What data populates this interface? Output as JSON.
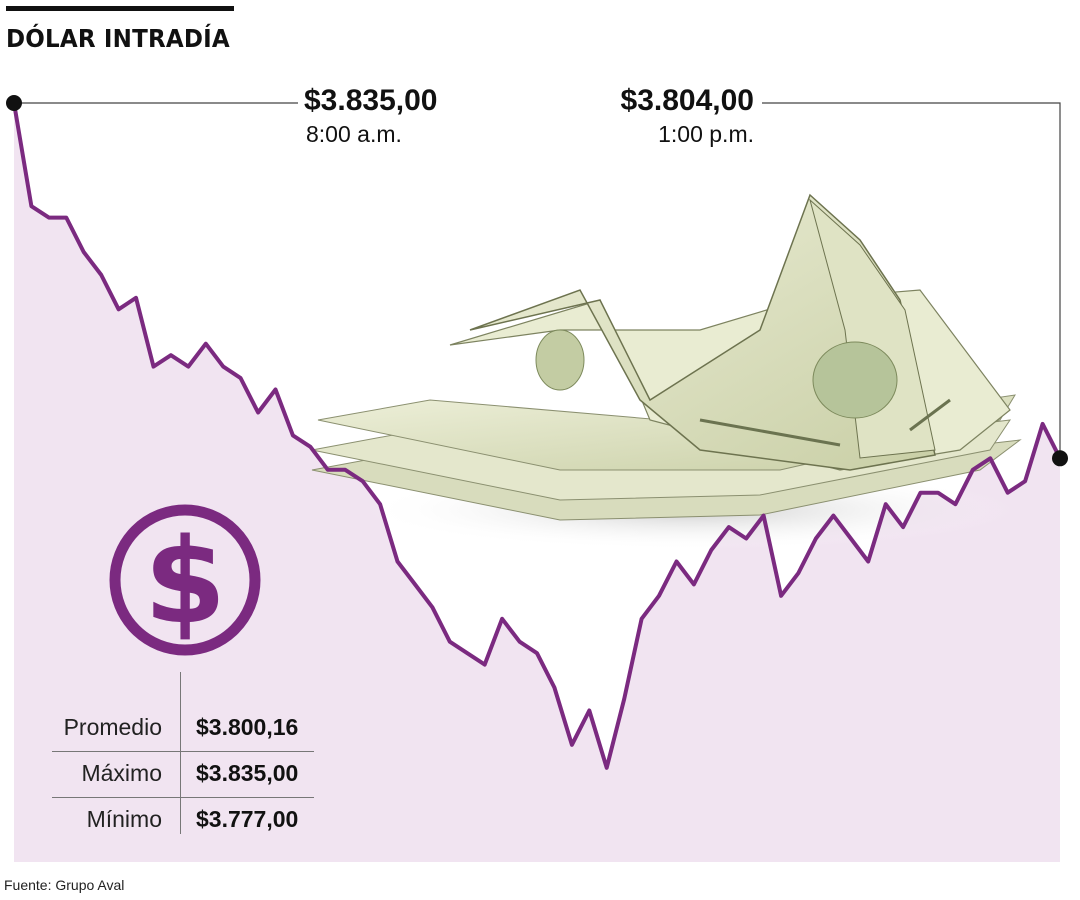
{
  "title": "DÓLAR INTRADÍA",
  "annotations": {
    "open": {
      "value": "$3.835,00",
      "time": "8:00 a.m."
    },
    "close": {
      "value": "$3.804,00",
      "time": "1:00 p.m."
    }
  },
  "stats": [
    {
      "label": "Promedio",
      "value": "$3.800,16"
    },
    {
      "label": "Máximo",
      "value": "$3.835,00"
    },
    {
      "label": "Mínimo",
      "value": "$3.777,00"
    }
  ],
  "source": "Fuente: Grupo Aval",
  "icons": {
    "currency": "dollar-circle-icon",
    "illustration": "dollar-bills-illustration"
  },
  "colors": {
    "line": "#7b2a80",
    "area": "#f1e4f1",
    "icon": "#7b2a80",
    "text": "#111111",
    "leader": "#444444"
  },
  "chart_data": {
    "type": "line",
    "title": "DÓLAR INTRADÍA",
    "xlabel": "",
    "ylabel": "",
    "ylim": [
      3770,
      3835
    ],
    "grid": false,
    "legend": "none",
    "series": [
      {
        "x": [
          "8:00",
          "8:05",
          "8:10",
          "8:15",
          "8:20",
          "8:25",
          "8:30",
          "8:35",
          "8:40",
          "8:45",
          "8:50",
          "8:55",
          "9:00",
          "9:05",
          "9:10",
          "9:15",
          "9:20",
          "9:25",
          "9:30",
          "9:35",
          "9:40",
          "9:45",
          "9:50",
          "9:55",
          "10:00",
          "10:05",
          "10:10",
          "10:15",
          "10:20",
          "10:25",
          "10:30",
          "10:35",
          "10:40",
          "10:45",
          "10:50",
          "10:55",
          "11:00",
          "11:05",
          "11:10",
          "11:15",
          "11:20",
          "11:25",
          "11:30",
          "11:35",
          "11:40",
          "11:45",
          "11:50",
          "11:55",
          "12:00",
          "12:05",
          "12:10",
          "12:15",
          "12:20",
          "12:25",
          "12:30",
          "12:35",
          "12:40",
          "12:45",
          "12:50",
          "12:55",
          "13:00"
        ],
        "values": [
          3835,
          3826,
          3825,
          3825,
          3822,
          3820,
          3817,
          3818,
          3812,
          3813,
          3812,
          3814,
          3812,
          3811,
          3808,
          3810,
          3806,
          3805,
          3803,
          3803,
          3802,
          3800,
          3795,
          3793,
          3791,
          3788,
          3787,
          3786,
          3790,
          3788,
          3787,
          3784,
          3779,
          3782,
          3777,
          3783,
          3790,
          3792,
          3795,
          3793,
          3796,
          3798,
          3797,
          3799,
          3792,
          3794,
          3797,
          3799,
          3797,
          3795,
          3800,
          3798,
          3801,
          3801,
          3800,
          3803,
          3804,
          3801,
          3802,
          3807,
          3804
        ]
      }
    ],
    "markers": [
      {
        "x": "8:00",
        "value": 3835
      },
      {
        "x": "13:00",
        "value": 3804
      }
    ]
  }
}
